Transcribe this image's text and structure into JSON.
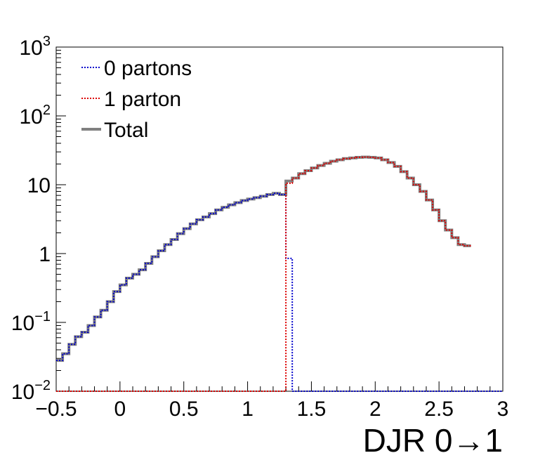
{
  "chart_data": {
    "type": "histogram",
    "xlabel": "DJR 0→1",
    "ylabel": "",
    "xlim": [
      -0.5,
      3
    ],
    "ylim": [
      0.01,
      1000
    ],
    "y_scale": "log",
    "bin_width": 0.05,
    "grid": false,
    "legend_position": "top-left",
    "x_ticks": [
      {
        "value": -0.5,
        "label": "−0.5"
      },
      {
        "value": 0,
        "label": "0"
      },
      {
        "value": 0.5,
        "label": "0.5"
      },
      {
        "value": 1,
        "label": "1"
      },
      {
        "value": 1.5,
        "label": "1.5"
      },
      {
        "value": 2,
        "label": "2"
      },
      {
        "value": 2.5,
        "label": "2.5"
      },
      {
        "value": 3,
        "label": "3"
      }
    ],
    "y_ticks": [
      {
        "value": 0.01,
        "base": "10",
        "exp": "−2"
      },
      {
        "value": 0.1,
        "base": "10",
        "exp": "−1"
      },
      {
        "value": 1,
        "base": "1",
        "exp": ""
      },
      {
        "value": 10,
        "base": "10",
        "exp": ""
      },
      {
        "value": 100,
        "base": "10",
        "exp": "2"
      },
      {
        "value": 1000,
        "base": "10",
        "exp": "3"
      }
    ],
    "series": [
      {
        "name": "0 partons",
        "color": "#0000cc",
        "style": "dotted",
        "x_start": -0.5,
        "values": [
          0.028,
          0.035,
          0.048,
          0.062,
          0.072,
          0.09,
          0.12,
          0.15,
          0.2,
          0.28,
          0.35,
          0.44,
          0.5,
          0.58,
          0.72,
          0.9,
          1.1,
          1.35,
          1.6,
          1.95,
          2.3,
          2.7,
          3.1,
          3.4,
          3.8,
          4.3,
          4.7,
          5.1,
          5.5,
          5.9,
          6.2,
          6.5,
          6.8,
          7.2,
          7.5,
          7.2,
          0.85,
          0.01,
          0.01,
          0.01,
          0.01,
          0.01,
          0.01,
          0.01,
          0.01,
          0.01,
          0.01,
          0.01,
          0.01,
          0.01,
          0.01,
          0.01,
          0.01,
          0.01,
          0.01,
          0.01,
          0.01,
          0.01,
          0.01,
          0.01,
          0.01,
          0.01,
          0.01,
          0.01,
          0.01,
          0.01,
          0.01,
          0.01,
          0.01,
          0.01
        ]
      },
      {
        "name": "1 parton",
        "color": "#dd0000",
        "style": "dotted",
        "x_start": -0.5,
        "values": [
          0.01,
          0.01,
          0.01,
          0.01,
          0.01,
          0.01,
          0.01,
          0.01,
          0.01,
          0.01,
          0.01,
          0.01,
          0.01,
          0.01,
          0.01,
          0.01,
          0.01,
          0.01,
          0.01,
          0.01,
          0.01,
          0.01,
          0.01,
          0.01,
          0.01,
          0.01,
          0.01,
          0.01,
          0.01,
          0.01,
          0.01,
          0.01,
          0.01,
          0.01,
          0.01,
          0.01,
          10.5,
          12.5,
          14.5,
          16.0,
          17.5,
          19.0,
          20.5,
          22.0,
          23.0,
          24.0,
          24.5,
          25.0,
          25.2,
          25.0,
          24.5,
          23.0,
          21.0,
          18.5,
          15.5,
          12.5,
          10.0,
          8.0,
          6.0,
          4.3,
          3.0,
          2.2,
          1.7,
          1.35,
          1.3
        ]
      },
      {
        "name": "Total",
        "color": "#808080",
        "style": "solid",
        "x_start": -0.5,
        "values": [
          0.028,
          0.035,
          0.048,
          0.062,
          0.072,
          0.09,
          0.12,
          0.15,
          0.2,
          0.28,
          0.35,
          0.44,
          0.5,
          0.58,
          0.72,
          0.9,
          1.1,
          1.35,
          1.6,
          1.95,
          2.3,
          2.7,
          3.1,
          3.4,
          3.8,
          4.3,
          4.7,
          5.1,
          5.5,
          5.9,
          6.2,
          6.5,
          6.8,
          7.2,
          7.5,
          7.2,
          11.3,
          12.5,
          14.5,
          16.0,
          17.5,
          19.0,
          20.5,
          22.0,
          23.0,
          24.0,
          24.5,
          25.0,
          25.2,
          25.0,
          24.5,
          23.0,
          21.0,
          18.5,
          15.5,
          12.5,
          10.0,
          8.0,
          6.0,
          4.3,
          3.0,
          2.2,
          1.7,
          1.35,
          1.3
        ]
      }
    ]
  }
}
